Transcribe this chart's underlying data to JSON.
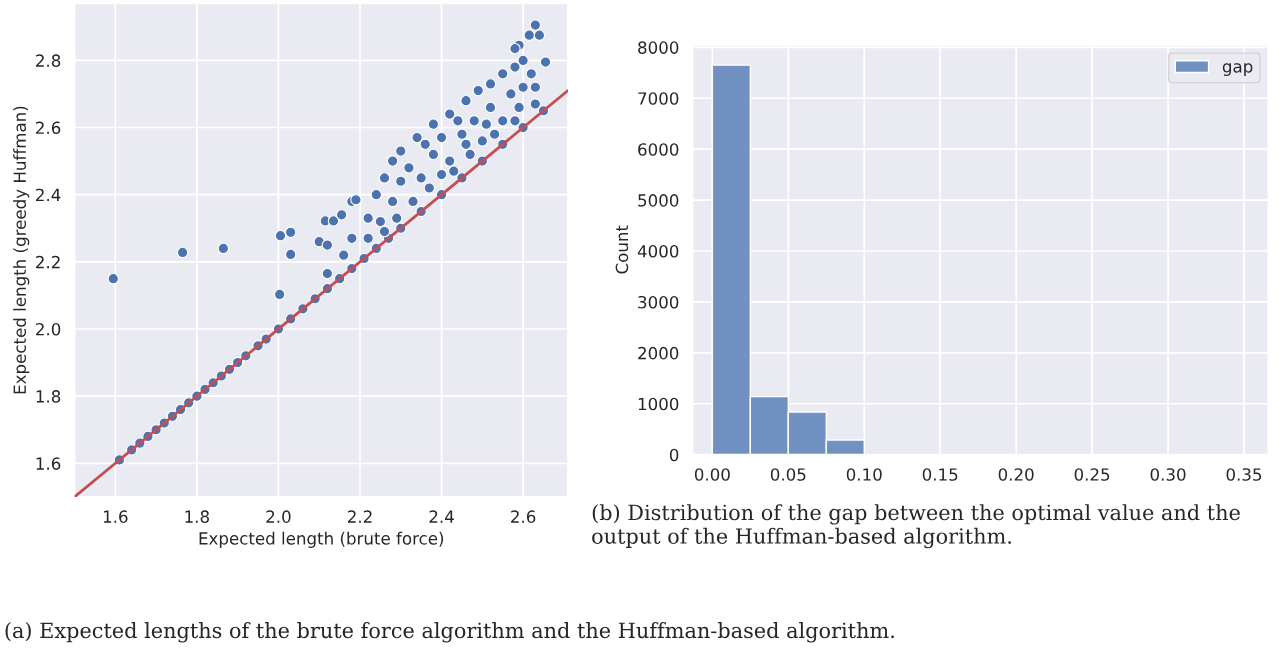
{
  "chart_data": [
    {
      "type": "scatter",
      "xlabel": "Expected length (brute force)",
      "ylabel": "Expected length (greedy Huffman)",
      "xlim": [
        1.5,
        2.71
      ],
      "ylim": [
        1.5,
        2.97
      ],
      "xticks": [
        1.6,
        1.8,
        {
          "value": 2,
          "label": "2.0"
        },
        2.2,
        2.4,
        2.6
      ],
      "yticks": [
        1.6,
        1.8,
        {
          "value": 2,
          "label": "2.0"
        },
        2.2,
        2.4,
        2.6,
        2.8
      ],
      "grid": true,
      "series": [
        {
          "type": "scatter",
          "marker": "circle",
          "color": "#4c72b0",
          "x": [
            1.61,
            1.64,
            1.66,
            1.68,
            1.7,
            1.72,
            1.74,
            1.76,
            1.78,
            1.8,
            1.82,
            1.84,
            1.86,
            1.88,
            1.9,
            1.92,
            1.95,
            1.97,
            2.0,
            2.03,
            2.06,
            2.09,
            2.12,
            2.15,
            2.18,
            2.21,
            2.24,
            2.27,
            2.3,
            2.35,
            2.4,
            2.45,
            2.5,
            2.55,
            2.6,
            2.65,
            1.595,
            1.765,
            1.865,
            2.005,
            2.03,
            2.03,
            2.003,
            2.1,
            2.12,
            2.115,
            2.135,
            2.155,
            2.18,
            2.19,
            2.12,
            2.63,
            2.64,
            2.655,
            2.615,
            2.59,
            2.58,
            2.16,
            2.18,
            2.22,
            2.24,
            2.26,
            2.28,
            2.3,
            2.34,
            2.38,
            2.42,
            2.46,
            2.49,
            2.52,
            2.55,
            2.58,
            2.6,
            2.62,
            2.63,
            2.63,
            2.22,
            2.25,
            2.28,
            2.3,
            2.32,
            2.35,
            2.38,
            2.4,
            2.42,
            2.45,
            2.48,
            2.5,
            2.52,
            2.55,
            2.57,
            2.59,
            2.6,
            2.33,
            2.37,
            2.43,
            2.47,
            2.53,
            2.58,
            2.26,
            2.29,
            2.36,
            2.44,
            2.4,
            2.46,
            2.51
          ],
          "values": [
            1.61,
            1.64,
            1.66,
            1.68,
            1.7,
            1.72,
            1.74,
            1.76,
            1.78,
            1.8,
            1.82,
            1.84,
            1.86,
            1.88,
            1.9,
            1.92,
            1.95,
            1.97,
            2.0,
            2.03,
            2.06,
            2.09,
            2.12,
            2.15,
            2.18,
            2.21,
            2.24,
            2.27,
            2.3,
            2.35,
            2.4,
            2.45,
            2.5,
            2.55,
            2.6,
            2.65,
            2.15,
            2.228,
            2.24,
            2.278,
            2.288,
            2.222,
            2.103,
            2.26,
            2.25,
            2.322,
            2.322,
            2.34,
            2.38,
            2.385,
            2.165,
            2.905,
            2.875,
            2.795,
            2.875,
            2.845,
            2.835,
            2.22,
            2.27,
            2.33,
            2.4,
            2.45,
            2.5,
            2.53,
            2.57,
            2.61,
            2.64,
            2.68,
            2.71,
            2.73,
            2.76,
            2.78,
            2.8,
            2.76,
            2.72,
            2.67,
            2.27,
            2.32,
            2.38,
            2.44,
            2.48,
            2.45,
            2.52,
            2.57,
            2.5,
            2.58,
            2.62,
            2.56,
            2.66,
            2.62,
            2.7,
            2.66,
            2.72,
            2.38,
            2.42,
            2.47,
            2.52,
            2.58,
            2.62,
            2.29,
            2.33,
            2.55,
            2.62,
            2.46,
            2.55,
            2.61
          ]
        },
        {
          "type": "line",
          "color": "#c44e52",
          "x": [
            1.5,
            2.71
          ],
          "values": [
            1.5,
            2.71
          ]
        }
      ],
      "annotations": [
        "(a) Expected lengths of the brute force algorithm and the Huffman-based algorithm."
      ]
    },
    {
      "type": "histogram",
      "ylabel": "Count",
      "bins": [
        0,
        0.025,
        0.05,
        0.075,
        0.1,
        0.125,
        0.15,
        0.175,
        0.2,
        0.225,
        0.25,
        0.275,
        0.3,
        0.325,
        0.35
      ],
      "xlim": [
        -0.013,
        0.366
      ],
      "ylim": [
        0,
        8050
      ],
      "xticks": [
        {
          "value": 0,
          "label": "0.00"
        },
        {
          "value": 0.05,
          "label": "0.05"
        },
        {
          "value": 0.1,
          "label": "0.10"
        },
        {
          "value": 0.15,
          "label": "0.15"
        },
        {
          "value": 0.2,
          "label": "0.20"
        },
        {
          "value": 0.25,
          "label": "0.25"
        },
        {
          "value": 0.3,
          "label": "0.30"
        },
        {
          "value": 0.35,
          "label": "0.35"
        }
      ],
      "yticks": [
        0,
        1000,
        2000,
        3000,
        4000,
        5000,
        6000,
        7000,
        8000
      ],
      "grid": true,
      "legend": "top right",
      "series": [
        {
          "name": "gap",
          "color": "#7191c3",
          "values": [
            7650,
            1140,
            840,
            290,
            null,
            null,
            null,
            null,
            null,
            null,
            null,
            null,
            null,
            null
          ]
        }
      ],
      "annotations": [
        "(b) Distribution of the gap between the optimal value and the output of the Huffman-based algorithm."
      ]
    }
  ]
}
